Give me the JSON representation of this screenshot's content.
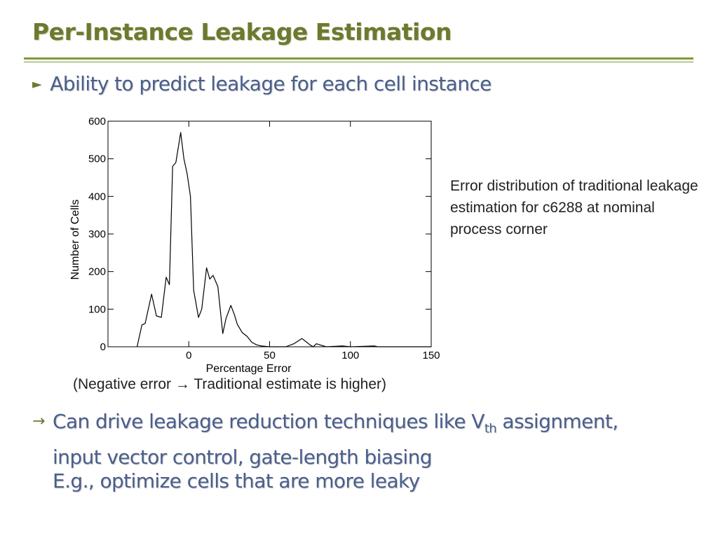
{
  "slide": {
    "title": "Per-Instance Leakage Estimation",
    "bullet1": "Ability to predict leakage for each cell instance",
    "caption": "Error distribution of traditional leakage estimation for c6288 at nominal process corner",
    "note_before": "(Negative error ",
    "note_arrow": "→",
    "note_after": " Traditional estimate is higher)",
    "bullet2_arrow": "→",
    "bullet2_line1_pre": "Can drive leakage reduction techniques like V",
    "bullet2_line1_sub": "th",
    "bullet2_line1_post": " assignment,",
    "bullet2_line2": "input vector control, gate-length biasing",
    "example": "E.g., optimize cells that are more leaky",
    "colors": {
      "title": "#6b7a2e",
      "body": "#4a5e8c",
      "rule": "#7f9a3a"
    }
  },
  "chart_data": {
    "type": "line",
    "title": "",
    "xlabel": "Percentage Error",
    "ylabel": "Number of Cells",
    "xlim": [
      -50,
      150
    ],
    "ylim": [
      0,
      600
    ],
    "xticks": [
      0,
      50,
      100,
      150
    ],
    "yticks": [
      0,
      100,
      200,
      300,
      400,
      500,
      600
    ],
    "grid": false,
    "series": [
      {
        "name": "",
        "points": [
          [
            -32,
            0
          ],
          [
            -29,
            58
          ],
          [
            -27,
            62
          ],
          [
            -23,
            140
          ],
          [
            -20,
            82
          ],
          [
            -17,
            78
          ],
          [
            -14,
            185
          ],
          [
            -12,
            165
          ],
          [
            -10,
            480
          ],
          [
            -8,
            490
          ],
          [
            -5,
            570
          ],
          [
            -3,
            500
          ],
          [
            -1,
            460
          ],
          [
            1,
            400
          ],
          [
            3,
            150
          ],
          [
            6,
            78
          ],
          [
            8,
            100
          ],
          [
            11,
            210
          ],
          [
            13,
            180
          ],
          [
            15,
            190
          ],
          [
            18,
            160
          ],
          [
            21,
            35
          ],
          [
            23,
            75
          ],
          [
            26,
            110
          ],
          [
            28,
            88
          ],
          [
            30,
            60
          ],
          [
            33,
            38
          ],
          [
            36,
            28
          ],
          [
            39,
            12
          ],
          [
            42,
            5
          ],
          [
            45,
            2
          ],
          [
            50,
            0
          ],
          [
            60,
            0
          ],
          [
            65,
            8
          ],
          [
            70,
            22
          ],
          [
            73,
            12
          ],
          [
            75,
            5
          ],
          [
            77,
            0
          ],
          [
            79,
            8
          ],
          [
            82,
            4
          ],
          [
            85,
            0
          ],
          [
            95,
            2
          ],
          [
            100,
            0
          ],
          [
            115,
            2
          ],
          [
            117,
            0
          ],
          [
            150,
            0
          ]
        ]
      }
    ]
  }
}
